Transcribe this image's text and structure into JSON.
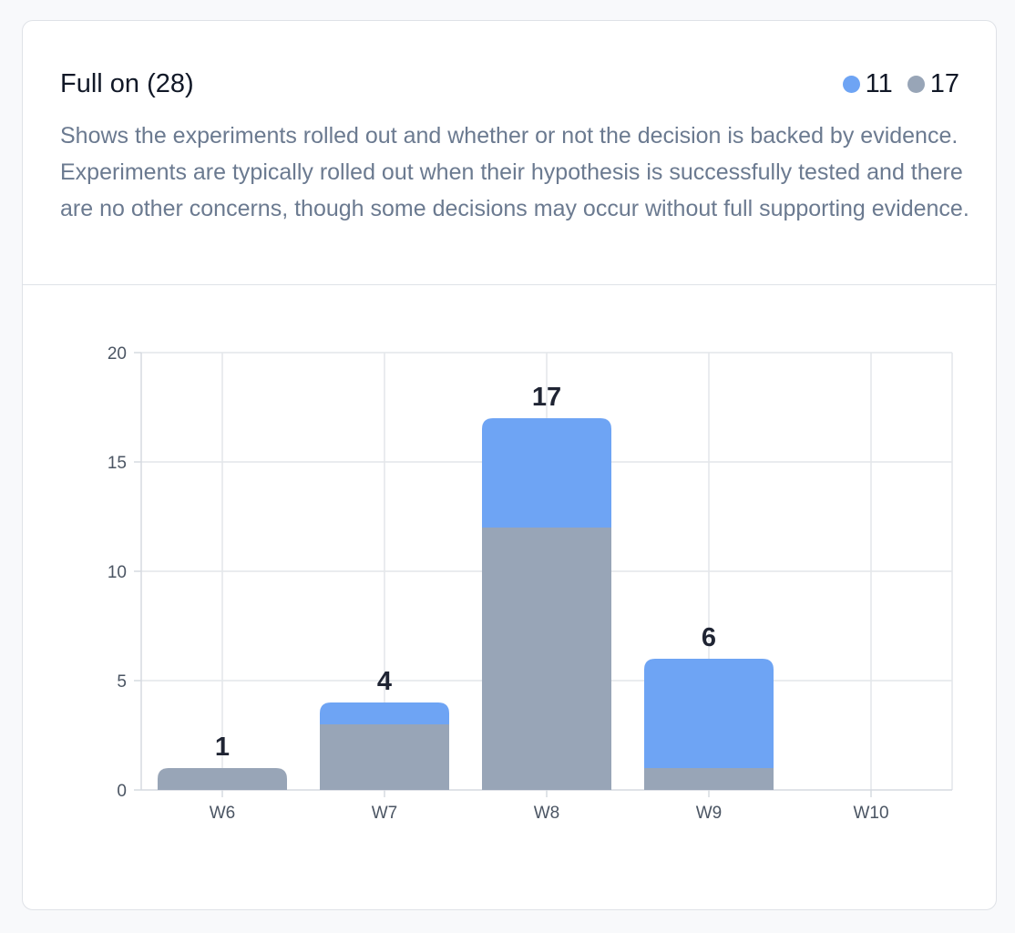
{
  "card": {
    "title": "Full on (28)",
    "description": "Shows the experiments rolled out and whether or not the decision is backed by evidence. Experiments are typically rolled out when their hypothesis is successfully tested and there are no other concerns, though some decisions may occur without full supporting evidence."
  },
  "legend": [
    {
      "value": "11",
      "color": "#6ea4f4"
    },
    {
      "value": "17",
      "color": "#98a5b7"
    }
  ],
  "chart_data": {
    "type": "bar",
    "stacked": true,
    "categories": [
      "W6",
      "W7",
      "W8",
      "W9",
      "W10"
    ],
    "series": [
      {
        "color": "#98a5b7",
        "values": [
          1,
          3,
          12,
          1,
          0
        ]
      },
      {
        "color": "#6ea4f4",
        "values": [
          0,
          1,
          5,
          5,
          0
        ]
      }
    ],
    "totals": [
      "1",
      "4",
      "17",
      "6",
      ""
    ],
    "yticks": [
      "0",
      "5",
      "10",
      "15",
      "20"
    ],
    "ylim": [
      0,
      20
    ],
    "grid": true,
    "legend_position": "top-right",
    "title": "",
    "xlabel": "",
    "ylabel": ""
  }
}
